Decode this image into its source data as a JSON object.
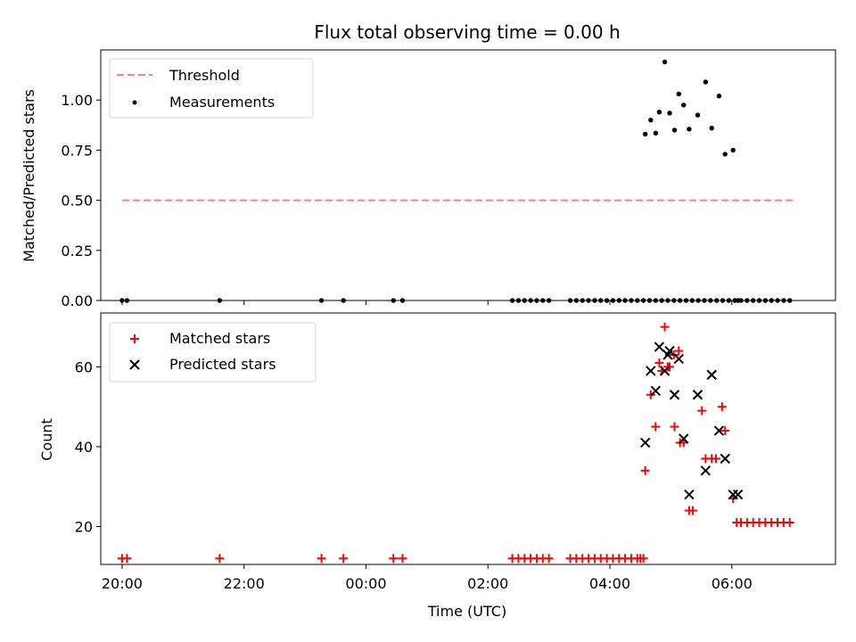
{
  "chart_data": [
    {
      "type": "line+scatter",
      "title": "Flux total observing time = 0.00 h",
      "ylabel": "Matched/Predicted stars",
      "xlabel": "",
      "xlim": [
        -0.35,
        11.7
      ],
      "ylim": [
        0.0,
        1.25
      ],
      "yticks": [
        0.0,
        0.25,
        0.5,
        0.75,
        1.0
      ],
      "ytick_labels": [
        "0.00",
        "0.25",
        "0.50",
        "0.75",
        "1.00"
      ],
      "xticks": [
        0,
        2,
        4,
        6,
        8,
        10
      ],
      "xtick_labels": [],
      "legend_position": "upper-left",
      "threshold": {
        "name": "Threshold",
        "color": "#ff7f7f",
        "x": [
          0.0,
          11.0
        ],
        "y": [
          0.5,
          0.5
        ]
      },
      "measurements": {
        "name": "Measurements",
        "color": "#000000",
        "x": [
          0.0,
          0.08,
          1.6,
          3.27,
          3.63,
          4.45,
          4.6,
          6.4,
          6.5,
          6.6,
          6.7,
          6.8,
          6.9,
          7.0,
          7.35,
          7.45,
          7.55,
          7.65,
          7.75,
          7.85,
          7.95,
          8.05,
          8.15,
          8.25,
          8.35,
          8.45,
          8.55,
          8.65,
          8.75,
          8.85,
          8.95,
          9.05,
          9.15,
          9.25,
          9.35,
          9.45,
          9.55,
          9.65,
          9.75,
          9.85,
          9.95,
          10.05,
          10.15,
          10.25,
          10.35,
          10.45,
          10.55,
          10.65,
          10.75,
          10.85,
          10.95,
          8.58,
          8.67,
          8.75,
          8.81,
          8.9,
          8.98,
          9.06,
          9.13,
          9.21,
          9.3,
          9.44,
          9.57,
          9.67,
          9.79,
          9.89,
          10.02,
          10.1
        ],
        "y": [
          0.0,
          0.0,
          0.0,
          0.0,
          0.0,
          0.0,
          0.0,
          0.0,
          0.0,
          0.0,
          0.0,
          0.0,
          0.0,
          0.0,
          0.0,
          0.0,
          0.0,
          0.0,
          0.0,
          0.0,
          0.0,
          0.0,
          0.0,
          0.0,
          0.0,
          0.0,
          0.0,
          0.0,
          0.0,
          0.0,
          0.0,
          0.0,
          0.0,
          0.0,
          0.0,
          0.0,
          0.0,
          0.0,
          0.0,
          0.0,
          0.0,
          0.0,
          0.0,
          0.0,
          0.0,
          0.0,
          0.0,
          0.0,
          0.0,
          0.0,
          0.0,
          0.83,
          0.9,
          0.835,
          0.94,
          1.19,
          0.935,
          0.85,
          1.03,
          0.975,
          0.855,
          0.925,
          1.09,
          0.86,
          1.02,
          0.73,
          0.75,
          0.0
        ]
      }
    },
    {
      "type": "scatter",
      "title": "",
      "ylabel": "Count",
      "xlabel": "Time (UTC)",
      "xlim": [
        -0.35,
        11.7
      ],
      "ylim": [
        10.5,
        73.5
      ],
      "yticks": [
        20,
        40,
        60
      ],
      "ytick_labels": [
        "20",
        "40",
        "60"
      ],
      "xticks": [
        0,
        2,
        4,
        6,
        8,
        10
      ],
      "xtick_labels": [
        "20:00",
        "22:00",
        "00:00",
        "02:00",
        "04:00",
        "06:00"
      ],
      "legend_position": "upper-left",
      "series": [
        {
          "name": "Matched stars",
          "marker": "+",
          "color": "#ff0000",
          "x": [
            0.0,
            0.08,
            1.6,
            3.27,
            3.63,
            4.45,
            4.6,
            6.4,
            6.5,
            6.6,
            6.7,
            6.8,
            6.9,
            7.0,
            7.35,
            7.45,
            7.55,
            7.65,
            7.75,
            7.85,
            7.95,
            8.05,
            8.15,
            8.25,
            8.35,
            8.45,
            8.55,
            8.58,
            8.67,
            8.75,
            8.81,
            8.9,
            8.98,
            9.06,
            9.13,
            9.21,
            9.3,
            9.36,
            9.51,
            9.57,
            9.67,
            9.74,
            9.84,
            9.89,
            10.02,
            10.08,
            10.15,
            10.25,
            10.35,
            10.45,
            10.55,
            10.65,
            10.75,
            10.85,
            10.95,
            8.5,
            8.85,
            8.95,
            9.05,
            9.15
          ],
          "y": [
            12,
            12,
            12,
            12,
            12,
            12,
            12,
            12,
            12,
            12,
            12,
            12,
            12,
            12,
            12,
            12,
            12,
            12,
            12,
            12,
            12,
            12,
            12,
            12,
            12,
            12,
            12,
            34,
            53,
            45,
            61,
            70,
            60,
            45,
            64,
            41,
            24,
            24,
            49,
            37,
            37,
            37,
            50,
            44,
            27,
            21,
            21,
            21,
            21,
            21,
            21,
            21,
            21,
            21,
            21,
            12,
            59,
            60,
            63,
            41
          ]
        },
        {
          "name": "Predicted stars",
          "marker": "x",
          "color": "#000000",
          "x": [
            8.58,
            8.67,
            8.75,
            8.81,
            8.9,
            8.98,
            9.06,
            9.13,
            9.21,
            9.3,
            9.44,
            9.57,
            9.67,
            9.79,
            9.89,
            10.02,
            10.1,
            8.95
          ],
          "y": [
            41,
            59,
            54,
            65,
            59,
            64,
            53,
            62,
            42,
            28,
            53,
            34,
            58,
            44,
            37,
            28,
            28,
            63
          ]
        }
      ]
    }
  ]
}
